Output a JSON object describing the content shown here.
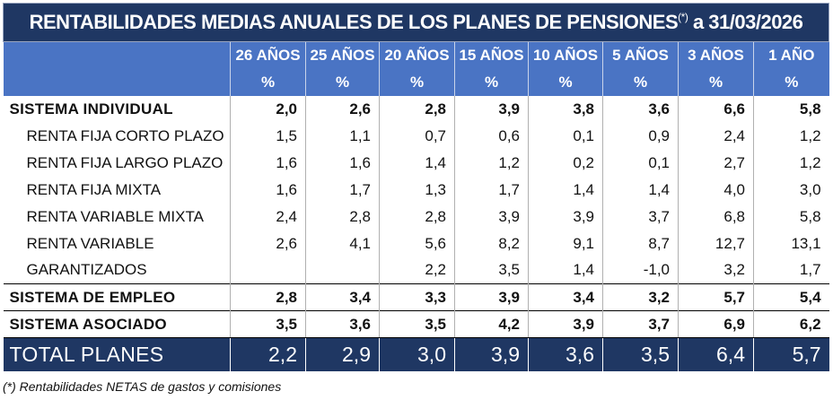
{
  "title": {
    "main": "RENTABILIDADES MEDIAS ANUALES DE LOS PLANES DE PENSIONES",
    "note_marker": "(*)",
    "date": " a 31/03/2026"
  },
  "columns": [
    {
      "label": "26 AÑOS",
      "unit": "%"
    },
    {
      "label": "25 AÑOS",
      "unit": "%"
    },
    {
      "label": "20 AÑOS",
      "unit": "%"
    },
    {
      "label": "15 AÑOS",
      "unit": "%"
    },
    {
      "label": "10 AÑOS",
      "unit": "%"
    },
    {
      "label": "5 AÑOS",
      "unit": "%"
    },
    {
      "label": "3 AÑOS",
      "unit": "%"
    },
    {
      "label": "1 AÑO",
      "unit": "%"
    }
  ],
  "rows": [
    {
      "label": "SISTEMA INDIVIDUAL",
      "values": [
        "2,0",
        "2,6",
        "2,8",
        "3,9",
        "3,8",
        "3,6",
        "6,6",
        "5,8"
      ]
    },
    {
      "label": "RENTA FIJA CORTO PLAZO",
      "values": [
        "1,5",
        "1,1",
        "0,7",
        "0,6",
        "0,1",
        "0,9",
        "2,4",
        "1,2"
      ]
    },
    {
      "label": "RENTA FIJA LARGO PLAZO",
      "values": [
        "1,6",
        "1,6",
        "1,4",
        "1,2",
        "0,2",
        "0,1",
        "2,7",
        "1,2"
      ]
    },
    {
      "label": "RENTA FIJA MIXTA",
      "values": [
        "1,6",
        "1,7",
        "1,3",
        "1,7",
        "1,4",
        "1,4",
        "4,0",
        "3,0"
      ]
    },
    {
      "label": "RENTA VARIABLE MIXTA",
      "values": [
        "2,4",
        "2,8",
        "2,8",
        "3,9",
        "3,9",
        "3,7",
        "6,8",
        "5,8"
      ]
    },
    {
      "label": "RENTA VARIABLE",
      "values": [
        "2,6",
        "4,1",
        "5,6",
        "8,2",
        "9,1",
        "8,7",
        "12,7",
        "13,1"
      ]
    },
    {
      "label": "GARANTIZADOS",
      "values": [
        "",
        "",
        "2,2",
        "3,5",
        "1,4",
        "-1,0",
        "3,2",
        "1,7"
      ]
    },
    {
      "label": "SISTEMA DE EMPLEO",
      "values": [
        "2,8",
        "3,4",
        "3,3",
        "3,9",
        "3,4",
        "3,2",
        "5,7",
        "5,4"
      ]
    },
    {
      "label": "SISTEMA ASOCIADO",
      "values": [
        "3,5",
        "3,6",
        "3,5",
        "4,2",
        "3,9",
        "3,7",
        "6,9",
        "6,2"
      ]
    }
  ],
  "total": {
    "label": "TOTAL PLANES",
    "values": [
      "2,2",
      "2,9",
      "3,0",
      "3,9",
      "3,6",
      "3,5",
      "6,4",
      "5,7"
    ]
  },
  "footnote": "(*) Rentabilidades NETAS de gastos y comisiones",
  "colors": {
    "title_bg": "#1f3763",
    "header_bg": "#4a74c4",
    "total_bg": "#1f3763"
  }
}
